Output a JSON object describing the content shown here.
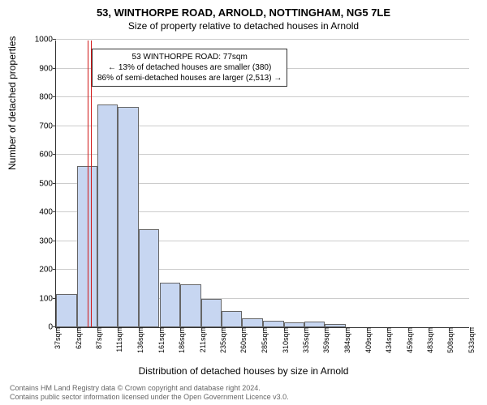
{
  "title_main": "53, WINTHORPE ROAD, ARNOLD, NOTTINGHAM, NG5 7LE",
  "title_sub": "Size of property relative to detached houses in Arnold",
  "ylabel": "Number of detached properties",
  "xlabel": "Distribution of detached houses by size in Arnold",
  "footer_line1": "Contains HM Land Registry data © Crown copyright and database right 2024.",
  "footer_line2": "Contains public sector information licensed under the Open Government Licence v3.0.",
  "chart": {
    "type": "histogram",
    "ylim": [
      0,
      1000
    ],
    "ytick_step": 100,
    "bar_fill": "#c7d6f1",
    "bar_border": "#666666",
    "grid_color": "#cccccc",
    "background": "#ffffff",
    "marker_color": "#d01717",
    "marker_x": 77,
    "xticks": [
      37,
      62,
      87,
      111,
      136,
      161,
      186,
      211,
      235,
      260,
      285,
      310,
      335,
      359,
      384,
      409,
      434,
      459,
      483,
      508,
      533
    ],
    "xtick_suffix": "sqm",
    "bars": [
      {
        "x0": 37,
        "x1": 62,
        "y": 115
      },
      {
        "x0": 62,
        "x1": 87,
        "y": 560
      },
      {
        "x0": 87,
        "x1": 111,
        "y": 775
      },
      {
        "x0": 111,
        "x1": 136,
        "y": 765
      },
      {
        "x0": 136,
        "x1": 161,
        "y": 340
      },
      {
        "x0": 161,
        "x1": 186,
        "y": 155
      },
      {
        "x0": 186,
        "x1": 211,
        "y": 150
      },
      {
        "x0": 211,
        "x1": 235,
        "y": 100
      },
      {
        "x0": 235,
        "x1": 260,
        "y": 55
      },
      {
        "x0": 260,
        "x1": 285,
        "y": 30
      },
      {
        "x0": 285,
        "x1": 310,
        "y": 22
      },
      {
        "x0": 310,
        "x1": 335,
        "y": 18
      },
      {
        "x0": 335,
        "x1": 359,
        "y": 20
      },
      {
        "x0": 359,
        "x1": 384,
        "y": 10
      }
    ],
    "annotation": {
      "line1": "53 WINTHORPE ROAD: 77sqm",
      "line2": "← 13% of detached houses are smaller (380)",
      "line3": "86% of semi-detached houses are larger (2,513) →"
    }
  }
}
